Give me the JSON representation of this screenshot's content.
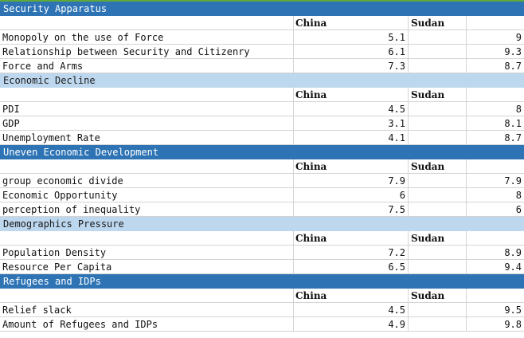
{
  "colors": {
    "dark_section": "#2e74b5",
    "light_section": "#bdd7ee",
    "top_line": "#5fa83a"
  },
  "sections": [
    {
      "title": "Security Apparatus",
      "style": "dark",
      "header": [
        "",
        "China",
        "Sudan",
        ""
      ],
      "rows": [
        {
          "label": "Monopoly on the use of Force",
          "china": "5.1",
          "sudan": "9"
        },
        {
          "label": "Relationship between Security and Citizenry",
          "china": "6.1",
          "sudan": "9.3"
        },
        {
          "label": "Force and Arms",
          "china": "7.3",
          "sudan": "8.7"
        }
      ]
    },
    {
      "title": "Economic Decline",
      "style": "light",
      "header": [
        "",
        "China",
        "Sudan",
        ""
      ],
      "rows": [
        {
          "label": "PDI",
          "china": "4.5",
          "sudan": "8"
        },
        {
          "label": "GDP",
          "china": "3.1",
          "sudan": "8.1"
        },
        {
          "label": "Unemployment Rate",
          "china": "4.1",
          "sudan": "8.7"
        }
      ]
    },
    {
      "title": "Uneven Economic Development",
      "style": "dark",
      "header": [
        "",
        "China",
        "Sudan",
        ""
      ],
      "rows": [
        {
          "label": "group economic divide",
          "china": "7.9",
          "sudan": "7.9"
        },
        {
          "label": "Economic Opportunity",
          "china": "6",
          "sudan": "8"
        },
        {
          "label": "perception of inequality",
          "china": "7.5",
          "sudan": "6"
        }
      ]
    },
    {
      "title": "Demographics Pressure",
      "style": "light",
      "header": [
        "",
        "China",
        "Sudan",
        ""
      ],
      "rows": [
        {
          "label": "Population Density",
          "china": "7.2",
          "sudan": "8.9"
        },
        {
          "label": "Resource Per Capita",
          "china": "6.5",
          "sudan": "9.4"
        }
      ]
    },
    {
      "title": "Refugees and IDPs",
      "style": "dark",
      "header": [
        "",
        "China",
        "Sudan",
        ""
      ],
      "rows": [
        {
          "label": "Relief slack",
          "china": "4.5",
          "sudan": "9.5"
        },
        {
          "label": "Amount of Refugees and IDPs",
          "china": "4.9",
          "sudan": "9.8"
        }
      ]
    }
  ]
}
